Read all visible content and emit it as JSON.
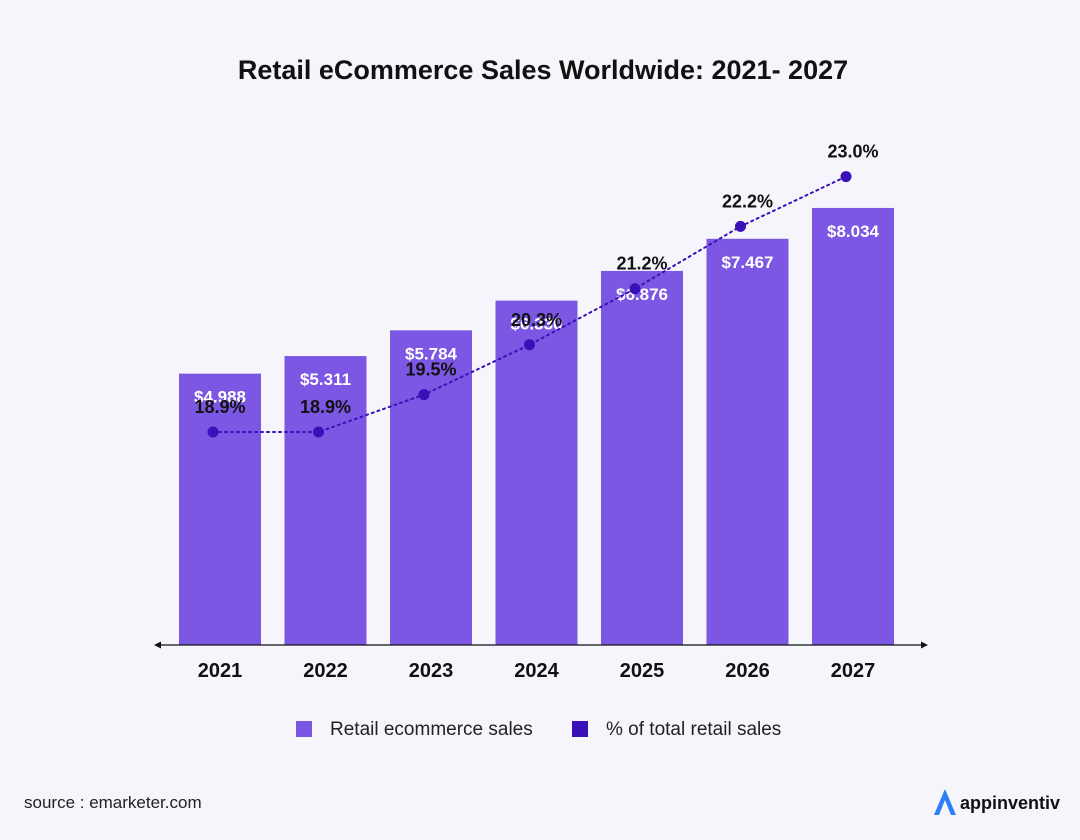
{
  "chart_data": {
    "type": "bar",
    "title": "Retail eCommerce Sales Worldwide: 2021- 2027",
    "categories": [
      "2021",
      "2022",
      "2023",
      "2024",
      "2025",
      "2026",
      "2027"
    ],
    "series": [
      {
        "name": "Retail ecommerce sales",
        "type": "bar",
        "values": [
          4.988,
          5.311,
          5.784,
          6.33,
          6.876,
          7.467,
          8.034
        ],
        "labels": [
          "$4.988",
          "$5.311",
          "$5.784",
          "$6.330",
          "$6.876",
          "$7.467",
          "$8.034"
        ],
        "color": "#7b57e4"
      },
      {
        "name": "% of total retail sales",
        "type": "line",
        "style": "dotted",
        "values": [
          18.9,
          18.9,
          19.5,
          20.3,
          21.2,
          22.2,
          23.0
        ],
        "labels": [
          "18.9%",
          "18.9%",
          "19.5%",
          "20.3%",
          "21.2%",
          "22.2%",
          "23.0%"
        ],
        "color": "#3a10b8"
      }
    ],
    "xlabel": "",
    "ylabel": "",
    "grid": false,
    "legend_position": "bottom"
  },
  "footer": {
    "source": "source : emarketer.com",
    "brand": "appinventiv"
  },
  "colors": {
    "background": "#f6f5fb",
    "bar": "#7b57e4",
    "line": "#3a10b8",
    "brand_icon": "#2d7ff9"
  },
  "icons": {
    "brand_logo": "appinventiv-a-icon"
  }
}
